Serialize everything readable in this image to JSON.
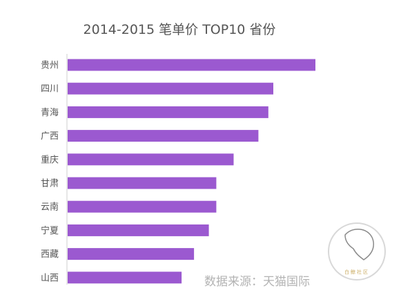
{
  "chart_data": {
    "type": "bar",
    "orientation": "horizontal",
    "title": "2014-2015 笔单价 TOP10 省份",
    "categories": [
      "贵州",
      "四川",
      "青海",
      "广西",
      "重庆",
      "甘肃",
      "云南",
      "宁夏",
      "西藏",
      "山西"
    ],
    "values": [
      100,
      83,
      81,
      77,
      67,
      60,
      60,
      57,
      51,
      46
    ],
    "xlim": [
      0,
      100
    ],
    "bar_color": "#9b59d0",
    "grid": false,
    "legend": "none"
  },
  "source_note": "数据来源：天猫国际",
  "watermark": {
    "text": "白鲸社区",
    "color": "#c9a95c"
  }
}
